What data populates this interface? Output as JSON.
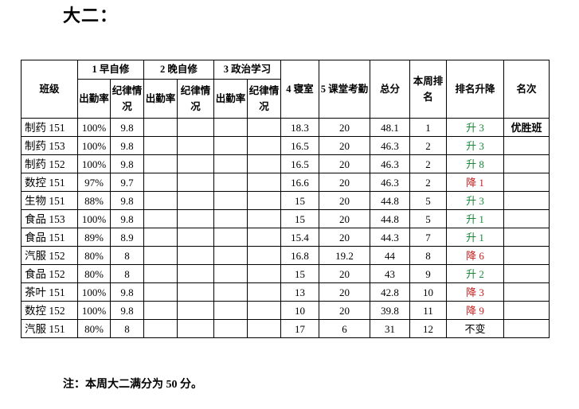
{
  "heading": "大二：",
  "header": {
    "class": "班级",
    "group1": "1 早自修",
    "group2": "2 晚自修",
    "group3": "3 政治学习",
    "attendance": "出勤率",
    "discipline": "纪律情况",
    "dorm": "4 寝室",
    "classroom": "5 课堂考勤",
    "total": "总分",
    "rank_week": "本周排名",
    "rank_change": "排名升降",
    "honor": "名次"
  },
  "rows": [
    {
      "class": "制药 151",
      "att1": "100%",
      "disc1": "9.8",
      "dorm": "18.3",
      "classroom": "20",
      "total": "48.1",
      "rank": "1",
      "change": "升 3",
      "dir": "up",
      "honor": "优胜班"
    },
    {
      "class": "制药 153",
      "att1": "100%",
      "disc1": "9.8",
      "dorm": "16.5",
      "classroom": "20",
      "total": "46.3",
      "rank": "2",
      "change": "升 3",
      "dir": "up",
      "honor": ""
    },
    {
      "class": "制药 152",
      "att1": "100%",
      "disc1": "9.8",
      "dorm": "16.5",
      "classroom": "20",
      "total": "46.3",
      "rank": "2",
      "change": "升 8",
      "dir": "up",
      "honor": ""
    },
    {
      "class": "数控 151",
      "att1": "97%",
      "disc1": "9.7",
      "dorm": "16.6",
      "classroom": "20",
      "total": "46.3",
      "rank": "2",
      "change": "降 1",
      "dir": "down",
      "honor": ""
    },
    {
      "class": "生物 151",
      "att1": "88%",
      "disc1": "9.8",
      "dorm": "15",
      "classroom": "20",
      "total": "44.8",
      "rank": "5",
      "change": "升 3",
      "dir": "up",
      "honor": ""
    },
    {
      "class": "食品 153",
      "att1": "100%",
      "disc1": "9.8",
      "dorm": "15",
      "classroom": "20",
      "total": "44.8",
      "rank": "5",
      "change": "升 1",
      "dir": "up",
      "honor": ""
    },
    {
      "class": "食品 151",
      "att1": "89%",
      "disc1": "8.9",
      "dorm": "15.4",
      "classroom": "20",
      "total": "44.3",
      "rank": "7",
      "change": "升 1",
      "dir": "up",
      "honor": ""
    },
    {
      "class": "汽服 152",
      "att1": "80%",
      "disc1": "8",
      "dorm": "16.8",
      "classroom": "19.2",
      "total": "44",
      "rank": "8",
      "change": "降 6",
      "dir": "down",
      "honor": ""
    },
    {
      "class": "食品 152",
      "att1": "80%",
      "disc1": "8",
      "dorm": "15",
      "classroom": "20",
      "total": "43",
      "rank": "9",
      "change": "升 2",
      "dir": "up",
      "honor": ""
    },
    {
      "class": "茶叶 151",
      "att1": "100%",
      "disc1": "9.8",
      "dorm": "13",
      "classroom": "20",
      "total": "42.8",
      "rank": "10",
      "change": "降 3",
      "dir": "down",
      "honor": ""
    },
    {
      "class": "数控 152",
      "att1": "100%",
      "disc1": "9.8",
      "dorm": "10",
      "classroom": "20",
      "total": "39.8",
      "rank": "11",
      "change": "降 9",
      "dir": "down",
      "honor": ""
    },
    {
      "class": "汽服 151",
      "att1": "80%",
      "disc1": "8",
      "dorm": "17",
      "classroom": "6",
      "total": "31",
      "rank": "12",
      "change": "不变",
      "dir": "same",
      "honor": ""
    }
  ],
  "colors": {
    "up": "#1a8a3a",
    "down": "#c81e1e"
  },
  "note": "注：本周大二满分为 50 分。"
}
